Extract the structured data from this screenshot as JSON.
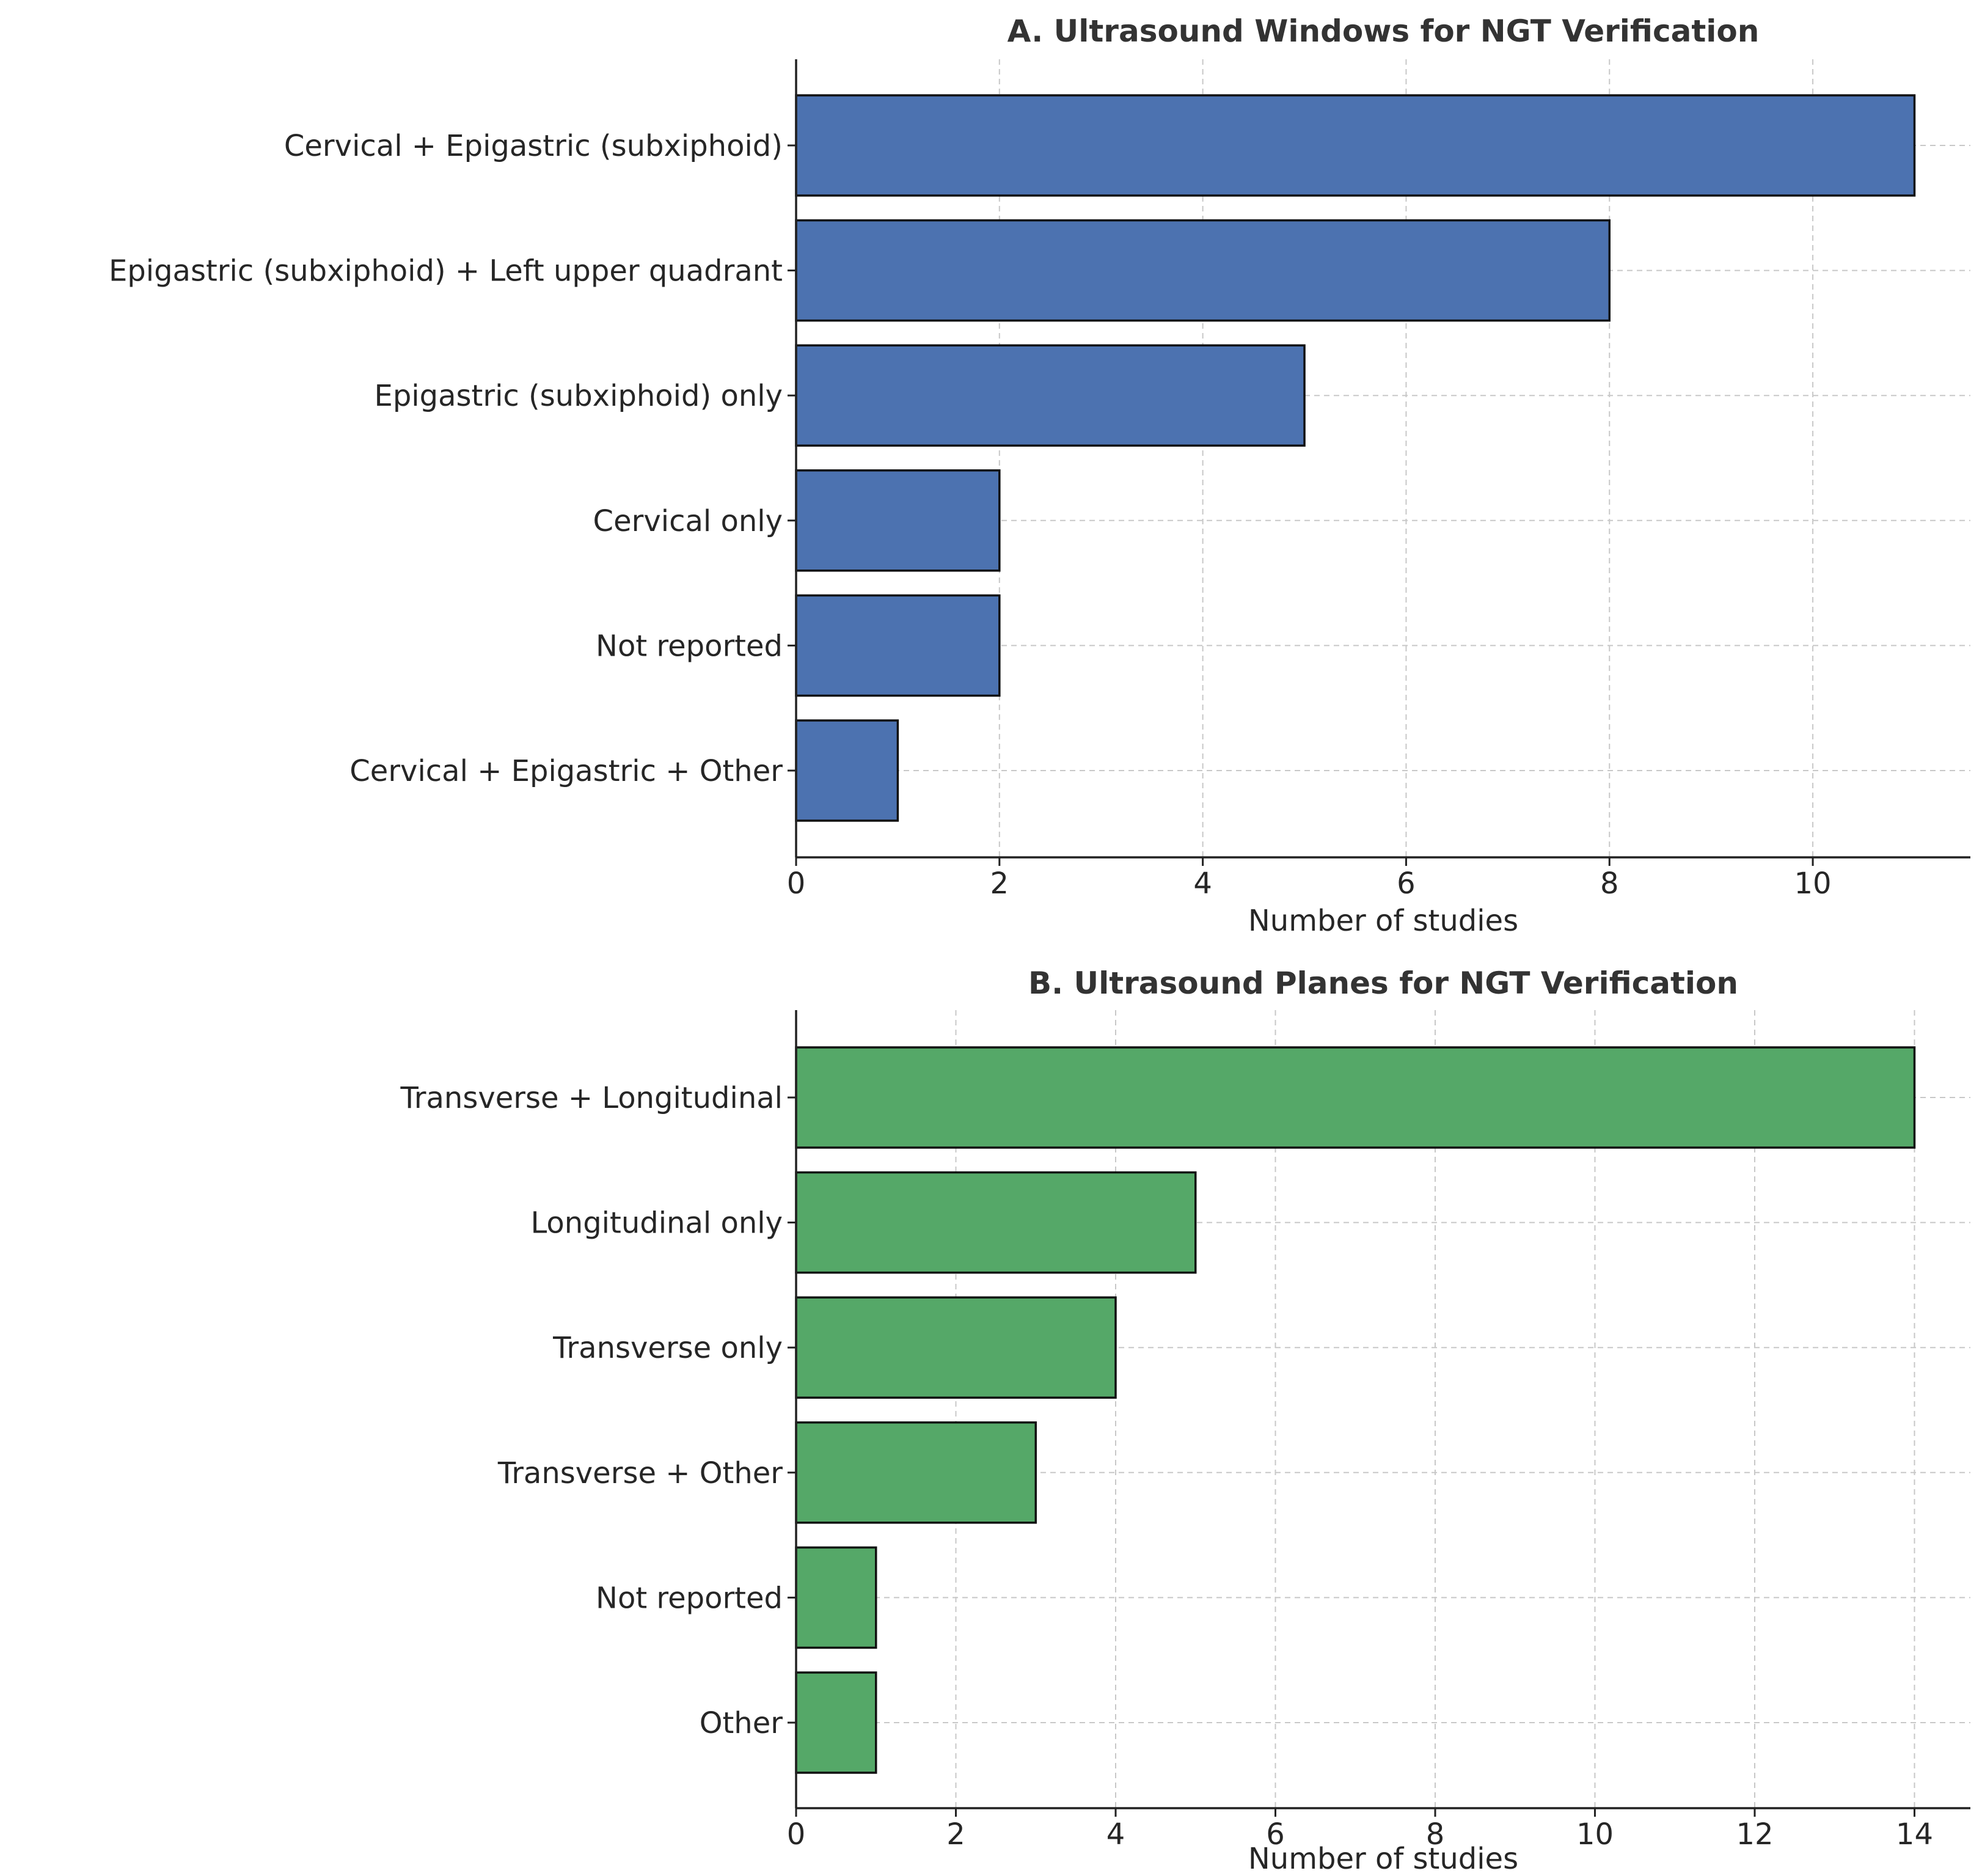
{
  "chart_data": [
    {
      "type": "bar",
      "orientation": "horizontal",
      "title": "A. Ultrasound Windows for NGT Verification",
      "xlabel": "Number of studies",
      "ylabel": "",
      "categories": [
        "Cervical + Epigastric (subxiphoid)",
        "Epigastric (subxiphoid) + Left upper quadrant",
        "Epigastric (subxiphoid) only",
        "Cervical only",
        "Not reported",
        "Cervical + Epigastric + Other"
      ],
      "values": [
        11,
        8,
        5,
        2,
        2,
        1
      ],
      "xlim": [
        0,
        11.55
      ],
      "xticks": [
        0,
        2,
        4,
        6,
        8,
        10
      ],
      "color": "#4c72b0",
      "grid": true
    },
    {
      "type": "bar",
      "orientation": "horizontal",
      "title": "B. Ultrasound Planes for NGT Verification",
      "xlabel": "Number of studies",
      "ylabel": "",
      "categories": [
        "Transverse + Longitudinal",
        "Longitudinal only",
        "Transverse only",
        "Transverse + Other",
        "Not reported",
        "Other"
      ],
      "values": [
        14,
        5,
        4,
        3,
        1,
        1
      ],
      "xlim": [
        0,
        14.7
      ],
      "xticks": [
        0,
        2,
        4,
        6,
        8,
        10,
        12,
        14
      ],
      "color": "#55a868",
      "grid": true
    }
  ]
}
